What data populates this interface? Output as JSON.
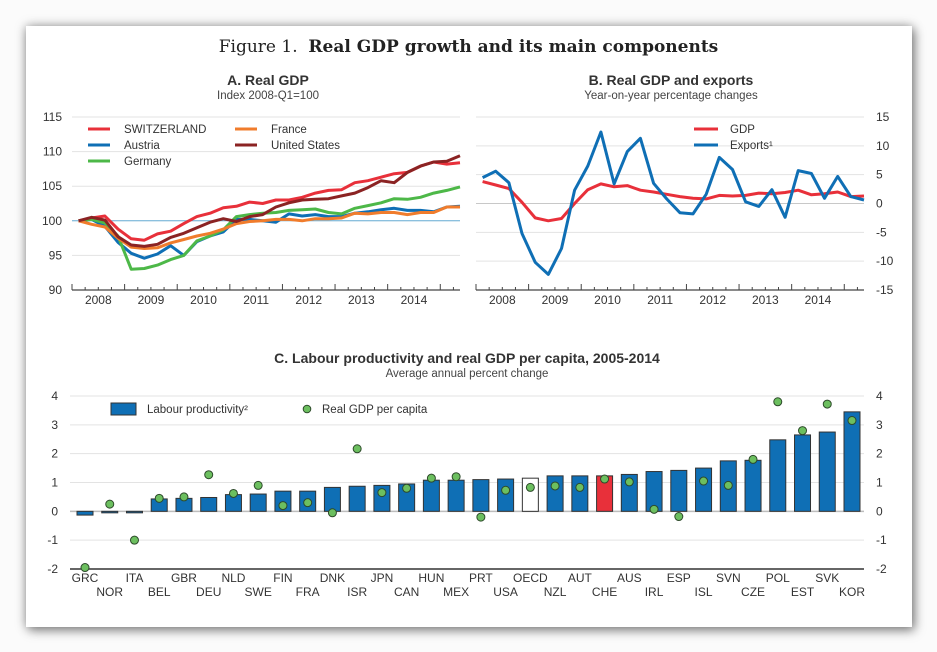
{
  "figure": {
    "prefix": "Figure 1.",
    "title": "Real GDP growth and its main components"
  },
  "chart_data": [
    {
      "id": "A",
      "type": "line",
      "title": "A. Real GDP",
      "subtitle": "Index 2008-Q1=100",
      "xlabel": "",
      "ylabel": "",
      "x_tick_labels": [
        "2008",
        "2009",
        "2010",
        "2011",
        "2012",
        "2013",
        "2014"
      ],
      "x_start": "2008-Q1",
      "x_end": "2014-Q4",
      "y_ticks": [
        90,
        95,
        100,
        105,
        110,
        115
      ],
      "ylim": [
        90,
        115
      ],
      "y_axis_side": "left",
      "reference_line": 100,
      "grid": true,
      "legend_position": "top-left",
      "series": [
        {
          "name": "SWITZERLAND",
          "color": "#e8303a",
          "values": [
            100,
            100.4,
            100.7,
            98.8,
            97.4,
            97.2,
            98.1,
            98.5,
            99.6,
            100.6,
            101.1,
            101.9,
            102.1,
            102.7,
            102.5,
            103.0,
            103.0,
            103.4,
            104.0,
            104.4,
            104.5,
            105.5,
            105.8,
            106.3,
            106.8,
            107.0,
            107.9,
            108.5,
            108.2,
            108.4
          ]
        },
        {
          "name": "Austria",
          "color": "#0f6fb5",
          "values": [
            100,
            100.2,
            99.2,
            96.9,
            95.3,
            94.6,
            95.2,
            96.4,
            95.0,
            97.0,
            97.8,
            98.4,
            100.2,
            100.2,
            100.0,
            99.8,
            101.0,
            100.7,
            100.9,
            100.6,
            100.6,
            101.1,
            101.3,
            101.6,
            101.8,
            101.5,
            101.5,
            101.3,
            102.0,
            102.1
          ]
        },
        {
          "name": "Germany",
          "color": "#4db848",
          "values": [
            100,
            100.2,
            99.7,
            97.8,
            93.0,
            93.1,
            93.6,
            94.4,
            95.0,
            97.1,
            97.8,
            98.7,
            100.6,
            100.9,
            101.1,
            101.2,
            101.5,
            101.6,
            101.7,
            101.2,
            101.0,
            101.8,
            102.2,
            102.6,
            103.2,
            103.1,
            103.4,
            104.0,
            104.4,
            104.9
          ]
        },
        {
          "name": "France",
          "color": "#f07c2c",
          "values": [
            100,
            99.5,
            99.1,
            97.5,
            96.2,
            96.0,
            96.1,
            96.8,
            97.3,
            97.8,
            98.2,
            98.8,
            99.6,
            99.9,
            100.0,
            100.2,
            100.2,
            100.0,
            100.3,
            100.3,
            100.4,
            101.1,
            101.0,
            101.2,
            101.2,
            100.9,
            101.2,
            101.2,
            102.0,
            102.0
          ]
        },
        {
          "name": "United States",
          "color": "#8b2323",
          "values": [
            100,
            100.5,
            100.1,
            97.7,
            96.5,
            96.3,
            96.6,
            97.6,
            98.2,
            99.0,
            99.8,
            100.3,
            99.9,
            100.6,
            100.9,
            102.0,
            102.6,
            103.0,
            103.1,
            103.2,
            103.6,
            104.0,
            104.8,
            105.8,
            105.5,
            107.0,
            107.9,
            108.5,
            108.6,
            109.4
          ]
        }
      ]
    },
    {
      "id": "B",
      "type": "line",
      "title": "B. Real GDP and exports",
      "subtitle": "Year-on-year percentage changes",
      "xlabel": "",
      "ylabel": "",
      "x_tick_labels": [
        "2008",
        "2009",
        "2010",
        "2011",
        "2012",
        "2013",
        "2014"
      ],
      "x_start": "2008-Q1",
      "x_end": "2014-Q4",
      "y_ticks": [
        -15,
        -10,
        -5,
        0,
        5,
        10,
        15
      ],
      "ylim": [
        -15,
        15
      ],
      "y_axis_side": "right",
      "grid": true,
      "legend_position": "top-right",
      "series": [
        {
          "name": "GDP",
          "color": "#e8303a",
          "values": [
            3.8,
            3.2,
            2.6,
            0.2,
            -2.5,
            -3.0,
            -2.6,
            0.0,
            2.4,
            3.4,
            2.9,
            3.1,
            2.3,
            2.0,
            1.6,
            1.2,
            0.9,
            0.8,
            1.4,
            1.3,
            1.4,
            1.8,
            1.7,
            1.9,
            2.3,
            1.5,
            1.7,
            2.0,
            1.2,
            1.3
          ]
        },
        {
          "name": "Exports¹",
          "color": "#0f6fb5",
          "values": [
            4.5,
            5.6,
            3.6,
            -5.2,
            -10.2,
            -12.3,
            -7.8,
            2.3,
            6.5,
            12.4,
            3.4,
            9.0,
            11.3,
            3.5,
            0.8,
            -1.6,
            -1.8,
            1.6,
            8.0,
            5.9,
            0.3,
            -0.5,
            2.4,
            -2.4,
            5.7,
            5.2,
            0.9,
            4.7,
            1.2,
            0.6
          ]
        }
      ]
    },
    {
      "id": "C",
      "type": "bar",
      "title": "C. Labour productivity and real GDP per capita, 2005-2014",
      "subtitle": "Average annual percent change",
      "xlabel": "",
      "ylabel": "",
      "y_ticks": [
        -2,
        -1,
        0,
        1,
        2,
        3,
        4
      ],
      "ylim": [
        -2,
        4
      ],
      "y_axis_side": "both",
      "grid": true,
      "legend_position": "top-left",
      "categories": [
        "GRC",
        "NOR",
        "ITA",
        "BEL",
        "GBR",
        "DEU",
        "NLD",
        "SWE",
        "FIN",
        "FRA",
        "DNK",
        "ISR",
        "JPN",
        "CAN",
        "HUN",
        "MEX",
        "PRT",
        "USA",
        "OECD",
        "NZL",
        "AUT",
        "CHE",
        "AUS",
        "IRL",
        "ESP",
        "ISL",
        "SVN",
        "CZE",
        "POL",
        "EST",
        "SVK",
        "KOR"
      ],
      "highlight": {
        "CHE": "#e8303a",
        "OECD": "#ffffff"
      },
      "series": [
        {
          "name": "Labour productivity²",
          "kind": "bar",
          "color": "#0f6fb5",
          "values": [
            -0.13,
            -0.05,
            -0.05,
            0.43,
            0.45,
            0.48,
            0.58,
            0.6,
            0.7,
            0.7,
            0.83,
            0.87,
            0.9,
            0.95,
            1.08,
            1.08,
            1.1,
            1.12,
            1.15,
            1.23,
            1.23,
            1.23,
            1.28,
            1.38,
            1.42,
            1.5,
            1.75,
            1.77,
            2.48,
            2.65,
            2.75,
            3.45
          ]
        },
        {
          "name": "Real GDP per capita",
          "kind": "marker",
          "color": "#6cbf5f",
          "values": [
            -1.95,
            0.25,
            -1.0,
            0.45,
            0.5,
            1.27,
            0.62,
            0.9,
            0.2,
            0.3,
            -0.05,
            2.17,
            0.65,
            0.8,
            1.15,
            1.2,
            -0.2,
            0.73,
            0.83,
            0.88,
            0.83,
            1.12,
            1.02,
            0.07,
            -0.18,
            1.05,
            0.9,
            1.8,
            3.8,
            2.8,
            3.72,
            3.15
          ]
        }
      ]
    }
  ]
}
